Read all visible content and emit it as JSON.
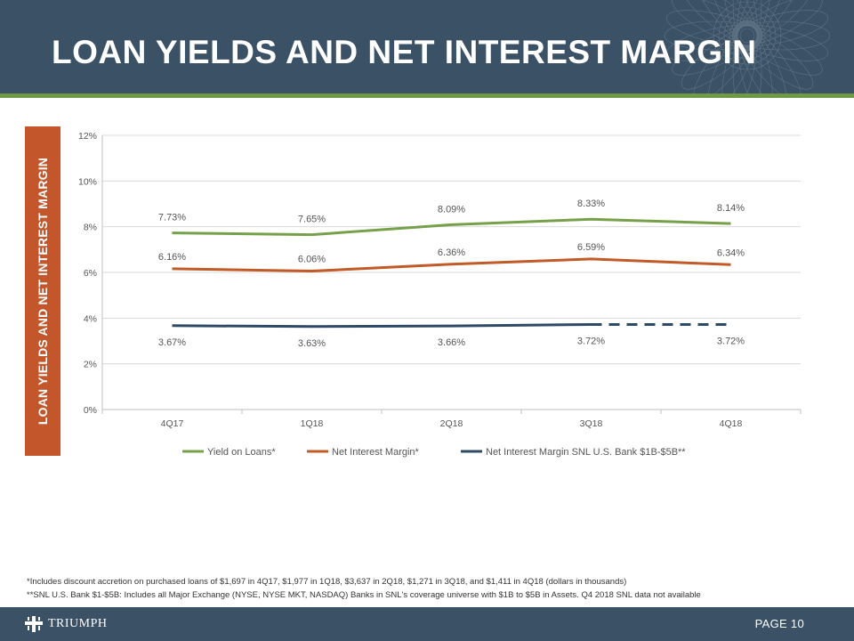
{
  "header": {
    "title": "LOAN YIELDS AND NET INTEREST MARGIN"
  },
  "side_label": "LOAN YIELDS AND NET INTEREST MARGIN",
  "chart_data": {
    "type": "line",
    "categories": [
      "4Q17",
      "1Q18",
      "2Q18",
      "3Q18",
      "4Q18"
    ],
    "ylim": [
      0,
      12
    ],
    "yticks": [
      "0%",
      "2%",
      "4%",
      "6%",
      "8%",
      "10%",
      "12%"
    ],
    "series": [
      {
        "name": "Yield on Loans*",
        "color": "#77a04a",
        "values": [
          7.73,
          7.65,
          8.09,
          8.33,
          8.14
        ],
        "labels": [
          "7.73%",
          "7.65%",
          "8.09%",
          "8.33%",
          "8.14%"
        ]
      },
      {
        "name": "Net Interest Margin*",
        "color": "#c15b27",
        "values": [
          6.16,
          6.06,
          6.36,
          6.59,
          6.34
        ],
        "labels": [
          "6.16%",
          "6.06%",
          "6.36%",
          "6.59%",
          "6.34%"
        ]
      },
      {
        "name": "Net Interest Margin SNL U.S. Bank $1B-$5B**",
        "color": "#2e4a66",
        "values": [
          3.67,
          3.63,
          3.66,
          3.72,
          3.72
        ],
        "labels": [
          "3.67%",
          "3.63%",
          "3.66%",
          "3.72%",
          "3.72%"
        ],
        "dashed_last_segment": true
      }
    ],
    "gridlines": true,
    "legend_position": "bottom"
  },
  "footnotes": [
    "*Includes discount accretion on purchased loans of $1,697 in 4Q17, $1,977 in 1Q18, $3,637 in 2Q18, $1,271 in 3Q18, and $1,411 in 4Q18 (dollars in thousands)",
    "**SNL U.S. Bank $1-$5B: Includes all Major Exchange (NYSE, NYSE MKT, NASDAQ) Banks in SNL's coverage universe with $1B to $5B in Assets. Q4 2018 SNL data not available"
  ],
  "footer": {
    "logo_text": "TRIUMPH",
    "page": "PAGE 10"
  }
}
